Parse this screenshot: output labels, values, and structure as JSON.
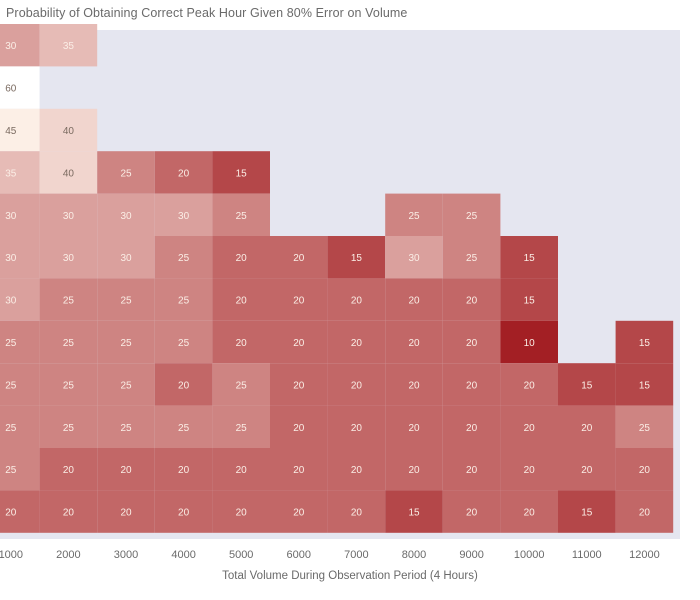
{
  "chart_data": {
    "type": "heatmap",
    "title": "Probability of Obtaining Correct Peak Hour Given 80% Error on Volume",
    "xlabel": "Total Volume During Observation Period (4 Hours)",
    "ylabel": "",
    "categories": [
      "1000",
      "2000",
      "3000",
      "4000",
      "5000",
      "6000",
      "7000",
      "8000",
      "9000",
      "10000",
      "11000",
      "12000"
    ],
    "rows": [
      [
        30,
        35,
        null,
        null,
        null,
        null,
        null,
        null,
        null,
        null,
        null,
        null
      ],
      [
        60,
        null,
        null,
        null,
        null,
        null,
        null,
        null,
        null,
        null,
        null,
        null
      ],
      [
        45,
        40,
        null,
        null,
        null,
        null,
        null,
        null,
        null,
        null,
        null,
        null
      ],
      [
        35,
        40,
        25,
        20,
        15,
        null,
        null,
        null,
        null,
        null,
        null,
        null
      ],
      [
        30,
        30,
        30,
        30,
        25,
        null,
        null,
        25,
        25,
        null,
        null,
        null
      ],
      [
        30,
        30,
        30,
        25,
        20,
        20,
        15,
        30,
        25,
        15,
        null,
        null
      ],
      [
        30,
        25,
        25,
        25,
        20,
        20,
        20,
        20,
        20,
        15,
        null,
        null
      ],
      [
        25,
        25,
        25,
        25,
        20,
        20,
        20,
        20,
        20,
        10,
        null,
        15
      ],
      [
        25,
        25,
        25,
        20,
        25,
        20,
        20,
        20,
        20,
        20,
        15,
        15
      ],
      [
        25,
        25,
        25,
        25,
        25,
        20,
        20,
        20,
        20,
        20,
        20,
        25
      ],
      [
        25,
        20,
        20,
        20,
        20,
        20,
        20,
        20,
        20,
        20,
        20,
        20
      ],
      [
        20,
        20,
        20,
        20,
        20,
        20,
        20,
        15,
        20,
        20,
        15,
        20
      ]
    ],
    "colorscale": {
      "low": "#a31f24",
      "high": "#fcefe6",
      "vmin": 10,
      "vmax": 45,
      "above_max": "#ffffff"
    },
    "background": "#e5e6f0"
  }
}
